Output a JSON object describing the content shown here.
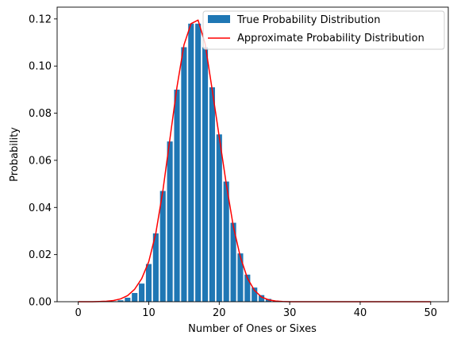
{
  "chart_data": {
    "type": "bar",
    "title": "",
    "xlabel": "Number of Ones or Sixes",
    "ylabel": "Probability",
    "xlim": [
      -3,
      52.5
    ],
    "ylim": [
      0,
      0.125
    ],
    "xticks": [
      0,
      10,
      20,
      30,
      40,
      50
    ],
    "xtick_labels": [
      "0",
      "10",
      "20",
      "30",
      "40",
      "50"
    ],
    "yticks": [
      0.0,
      0.02,
      0.04,
      0.06,
      0.08,
      0.1,
      0.12
    ],
    "ytick_labels": [
      "0.00",
      "0.02",
      "0.04",
      "0.06",
      "0.08",
      "0.10",
      "0.12"
    ],
    "grid": false,
    "legend_position": "top-right",
    "x": [
      0,
      1,
      2,
      3,
      4,
      5,
      6,
      7,
      8,
      9,
      10,
      11,
      12,
      13,
      14,
      15,
      16,
      17,
      18,
      19,
      20,
      21,
      22,
      23,
      24,
      25,
      26,
      27,
      28,
      29,
      30,
      31,
      32,
      33,
      34,
      35,
      36,
      37,
      38,
      39,
      40,
      41,
      42,
      43,
      44,
      45,
      46,
      47,
      48,
      49,
      50
    ],
    "series": [
      {
        "name": "True Probability Distribution",
        "kind": "bar",
        "color": "#1f77b4",
        "values": [
          0,
          0,
          0,
          0,
          0.0001,
          0.0002,
          0.0006,
          0.0017,
          0.0037,
          0.0077,
          0.016,
          0.029,
          0.047,
          0.068,
          0.09,
          0.108,
          0.118,
          0.118,
          0.108,
          0.091,
          0.071,
          0.051,
          0.0335,
          0.0205,
          0.0115,
          0.006,
          0.0028,
          0.0012,
          0.0005,
          0.0002,
          0.0001,
          0,
          0,
          0,
          0,
          0,
          0,
          0,
          0,
          0,
          0,
          0,
          0,
          0,
          0,
          0,
          0,
          0,
          0,
          0,
          0
        ]
      },
      {
        "name": "Approximate Probability Distribution",
        "kind": "line",
        "color": "#ff0000",
        "values": [
          0,
          0,
          0,
          0.0001,
          0.0002,
          0.0005,
          0.0012,
          0.0026,
          0.0053,
          0.0098,
          0.017,
          0.029,
          0.047,
          0.069,
          0.091,
          0.109,
          0.118,
          0.1195,
          0.1095,
          0.09,
          0.07,
          0.05,
          0.032,
          0.019,
          0.01,
          0.0048,
          0.002,
          0.0008,
          0.0003,
          0.0001,
          0,
          0,
          0,
          0,
          0,
          0,
          0,
          0,
          0,
          0,
          0,
          0,
          0,
          0,
          0,
          0,
          0,
          0,
          0,
          0,
          0
        ]
      }
    ]
  }
}
